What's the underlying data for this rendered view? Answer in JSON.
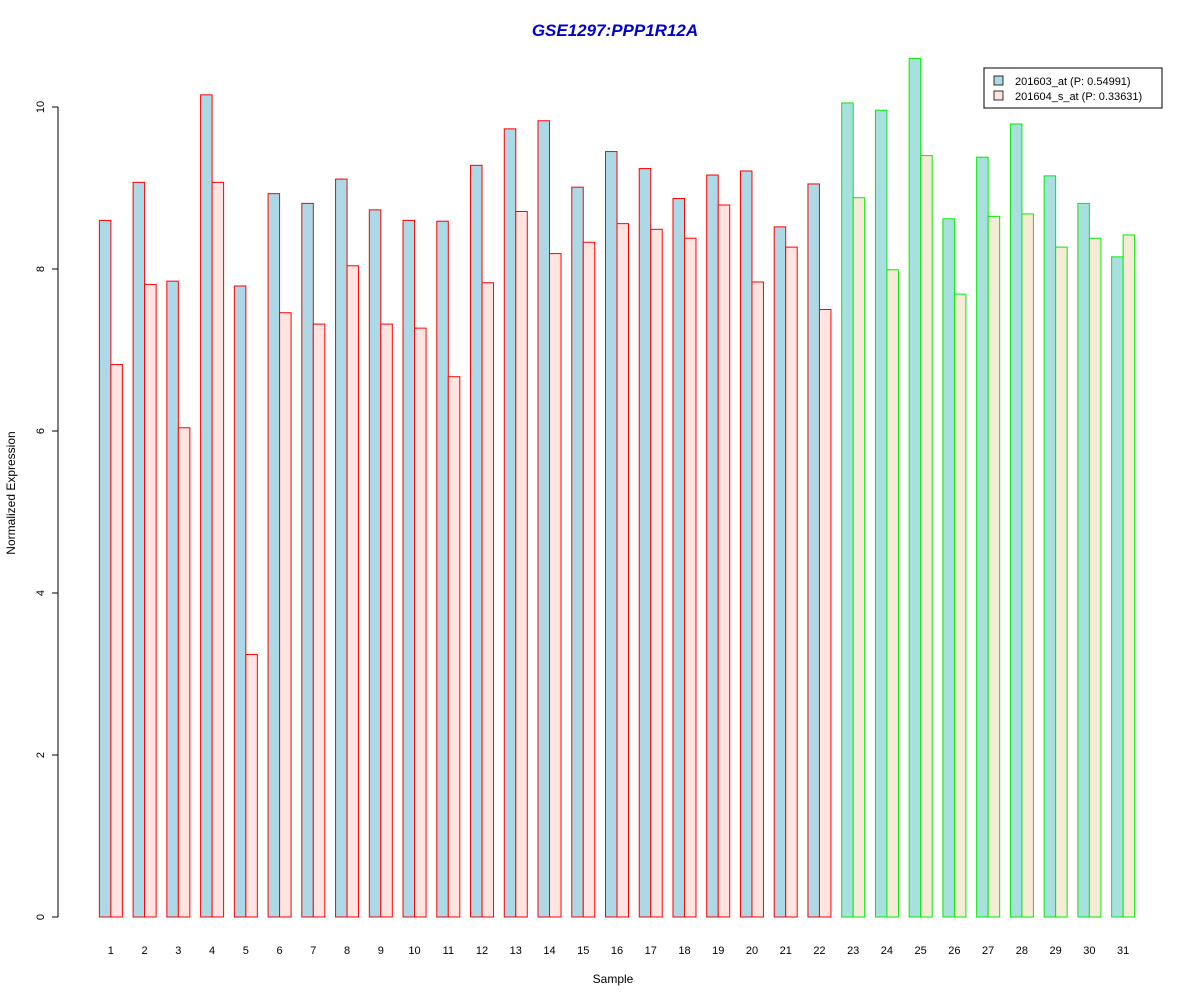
{
  "chart_data": {
    "type": "bar",
    "title": "GSE1297:PPP1R12A",
    "xlabel": "Sample",
    "ylabel": "Normalized Expression",
    "ylim": [
      0,
      10.6
    ],
    "yticks": [
      0,
      2,
      4,
      6,
      8,
      10
    ],
    "categories": [
      "1",
      "2",
      "3",
      "4",
      "5",
      "6",
      "7",
      "8",
      "9",
      "10",
      "11",
      "12",
      "13",
      "14",
      "15",
      "16",
      "17",
      "18",
      "19",
      "20",
      "21",
      "22",
      "23",
      "24",
      "25",
      "26",
      "27",
      "28",
      "29",
      "30",
      "31"
    ],
    "series": [
      {
        "name": "201603_at (P: 0.54991)",
        "fill": "#add8e6",
        "values": [
          8.6,
          9.07,
          7.85,
          10.15,
          7.79,
          8.93,
          8.81,
          9.11,
          8.73,
          8.6,
          8.59,
          9.28,
          9.73,
          9.83,
          9.01,
          9.45,
          9.24,
          8.87,
          9.16,
          9.21,
          8.52,
          9.05,
          10.05,
          9.96,
          10.6,
          8.62,
          9.38,
          9.79,
          9.15,
          8.81,
          8.15
        ]
      },
      {
        "name": "201604_s_at (P: 0.33631)",
        "fill": "#ffe4e1",
        "values": [
          6.82,
          7.81,
          6.04,
          9.07,
          3.24,
          7.46,
          7.32,
          8.04,
          7.32,
          7.27,
          6.67,
          7.83,
          8.71,
          8.19,
          8.33,
          8.56,
          8.49,
          8.38,
          8.79,
          7.84,
          8.27,
          7.5,
          8.88,
          7.99,
          9.4,
          7.69,
          8.65,
          8.68,
          8.27,
          8.38,
          8.42
        ]
      }
    ],
    "group_border_colors": [
      "#ff0000",
      "#00ee00"
    ],
    "group_split_after": 22,
    "alt_fill_group2": "#f5ebd7",
    "alt_fill_group2_primary": "#a8e0e0",
    "legend_position": "top-right",
    "grid": false
  }
}
